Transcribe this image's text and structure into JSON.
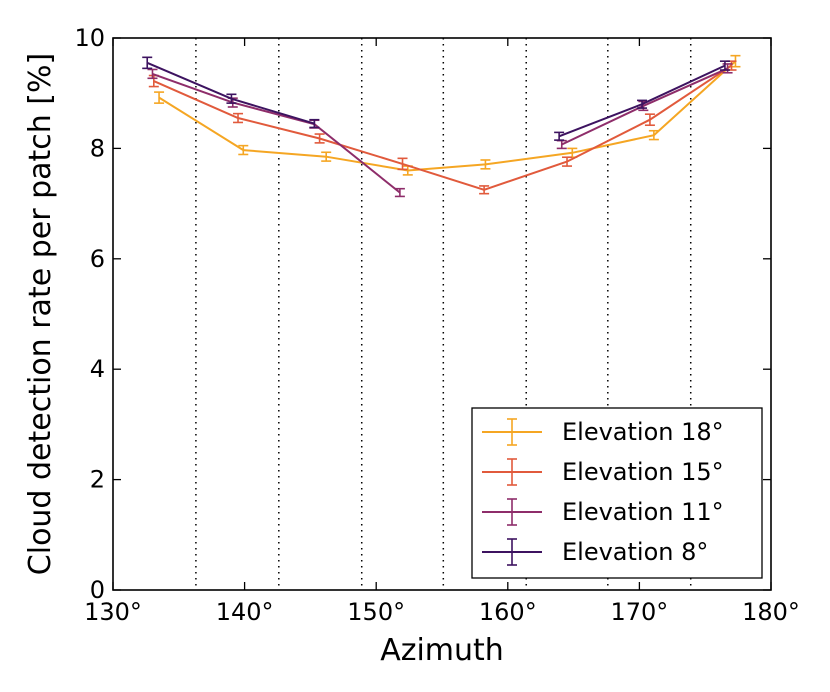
{
  "chart_data": {
    "type": "line",
    "title": "",
    "xlabel": "Azimuth",
    "ylabel": "Cloud detection rate per patch [%]",
    "xlim": [
      130,
      180
    ],
    "ylim": [
      0,
      10
    ],
    "x_ticks": [
      130,
      140,
      150,
      160,
      170,
      180
    ],
    "x_tick_labels": [
      "130°",
      "140°",
      "150°",
      "160°",
      "170°",
      "180°"
    ],
    "y_ticks": [
      0,
      2,
      4,
      6,
      8,
      10
    ],
    "y_tick_labels": [
      "0",
      "2",
      "4",
      "6",
      "8",
      "10"
    ],
    "vertical_dotted_lines": [
      136.3,
      142.6,
      148.9,
      155.1,
      161.4,
      167.6,
      173.9
    ],
    "legend_position": "lower-right",
    "series": [
      {
        "name": "Elevation 18°",
        "color": "#f5a623",
        "segments": [
          [
            {
              "x": 133.5,
              "y": 8.92,
              "err": 0.1
            },
            {
              "x": 139.9,
              "y": 7.97,
              "err": 0.08
            },
            {
              "x": 146.2,
              "y": 7.85,
              "err": 0.08
            },
            {
              "x": 152.4,
              "y": 7.6,
              "err": 0.08
            },
            {
              "x": 158.3,
              "y": 7.71,
              "err": 0.08
            },
            {
              "x": 164.9,
              "y": 7.92,
              "err": 0.08
            },
            {
              "x": 171.1,
              "y": 8.24,
              "err": 0.08
            },
            {
              "x": 177.3,
              "y": 9.58,
              "err": 0.1
            }
          ]
        ]
      },
      {
        "name": "Elevation 15°",
        "color": "#e15a3c",
        "segments": [
          [
            {
              "x": 133.1,
              "y": 9.22,
              "err": 0.1
            },
            {
              "x": 139.5,
              "y": 8.55,
              "err": 0.08
            },
            {
              "x": 145.7,
              "y": 8.18,
              "err": 0.08
            },
            {
              "x": 152.0,
              "y": 7.72,
              "err": 0.1
            },
            {
              "x": 158.2,
              "y": 7.25,
              "err": 0.07
            },
            {
              "x": 164.5,
              "y": 7.76,
              "err": 0.08
            },
            {
              "x": 170.8,
              "y": 8.52,
              "err": 0.1
            },
            {
              "x": 177.0,
              "y": 9.5,
              "err": 0.08
            }
          ]
        ]
      },
      {
        "name": "Elevation 11°",
        "color": "#8e2d6a",
        "segments": [
          [
            {
              "x": 133.0,
              "y": 9.35,
              "err": 0.08
            },
            {
              "x": 139.1,
              "y": 8.83,
              "err": 0.08
            },
            {
              "x": 145.3,
              "y": 8.44,
              "err": 0.07
            },
            {
              "x": 151.8,
              "y": 7.2,
              "err": 0.07
            }
          ],
          [
            {
              "x": 164.1,
              "y": 8.07,
              "err": 0.07
            },
            {
              "x": 170.3,
              "y": 8.77,
              "err": 0.08
            },
            {
              "x": 176.7,
              "y": 9.45,
              "err": 0.08
            }
          ]
        ]
      },
      {
        "name": "Elevation 8°",
        "color": "#3d1360",
        "segments": [
          [
            {
              "x": 132.6,
              "y": 9.55,
              "err": 0.1
            },
            {
              "x": 139.0,
              "y": 8.9,
              "err": 0.08
            },
            {
              "x": 145.3,
              "y": 8.45,
              "err": 0.07
            }
          ],
          [
            {
              "x": 163.9,
              "y": 8.22,
              "err": 0.07
            },
            {
              "x": 170.2,
              "y": 8.8,
              "err": 0.07
            },
            {
              "x": 176.5,
              "y": 9.5,
              "err": 0.08
            }
          ]
        ]
      }
    ]
  }
}
